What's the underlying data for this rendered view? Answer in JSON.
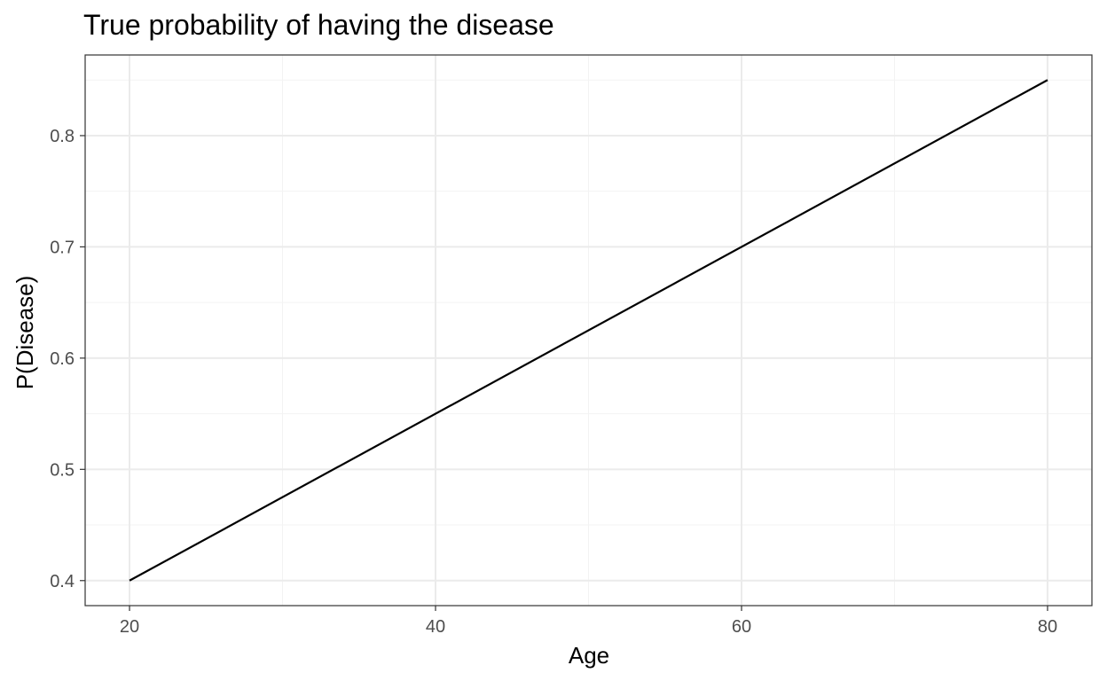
{
  "chart_data": {
    "type": "line",
    "title": "True probability of having the disease",
    "xlabel": "Age",
    "ylabel": "P(Disease)",
    "xlim": [
      17.1,
      82.9
    ],
    "ylim": [
      0.3775,
      0.8725
    ],
    "x_ticks": [
      20,
      40,
      60,
      80
    ],
    "x_tick_labels": [
      "20",
      "40",
      "60",
      "80"
    ],
    "y_ticks": [
      0.4,
      0.5,
      0.6,
      0.7,
      0.8
    ],
    "y_tick_labels": [
      "0.4",
      "0.5",
      "0.6",
      "0.7",
      "0.8"
    ],
    "x_minor_ticks": [
      30,
      50,
      70
    ],
    "y_minor_ticks": [
      0.45,
      0.55,
      0.65,
      0.75,
      0.85
    ],
    "grid": true,
    "legend": "none",
    "series": [
      {
        "x": [
          20,
          80
        ],
        "y": [
          0.4,
          0.85
        ]
      }
    ],
    "colors": {
      "line": "#000000",
      "grid_major": "#ebebeb",
      "grid_minor": "#f3f3f3",
      "panel_border": "#333333",
      "tick_text": "#4d4d4d"
    }
  }
}
